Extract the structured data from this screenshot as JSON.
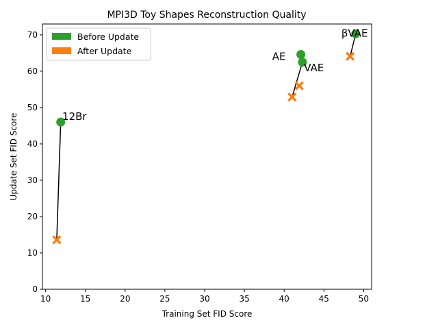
{
  "chart_data": {
    "type": "scatter",
    "title": "MPI3D Toy Shapes Reconstruction Quality",
    "xlabel": "Training Set FID Score",
    "ylabel": "Update Set FID Score",
    "xlim": [
      9.6,
      51.0
    ],
    "ylim": [
      0,
      73
    ],
    "xticks": [
      10,
      15,
      20,
      25,
      30,
      35,
      40,
      45,
      50
    ],
    "yticks": [
      0,
      10,
      20,
      30,
      40,
      50,
      60,
      70
    ],
    "grid": false,
    "legend_position": "top-left",
    "series": [
      {
        "name": "Before Update",
        "color": "#2ca02c",
        "marker": "circle",
        "points": [
          {
            "x": 11.9,
            "y": 46.0
          },
          {
            "x": 42.1,
            "y": 64.6
          },
          {
            "x": 42.3,
            "y": 62.5
          },
          {
            "x": 49.0,
            "y": 70.3
          }
        ]
      },
      {
        "name": "After Update",
        "color": "#ff7f0e",
        "marker": "x",
        "points": [
          {
            "x": 11.4,
            "y": 13.6
          },
          {
            "x": 41.0,
            "y": 52.9
          },
          {
            "x": 41.9,
            "y": 56.0
          },
          {
            "x": 48.3,
            "y": 64.1
          }
        ]
      }
    ],
    "connectors": [
      {
        "from": [
          11.9,
          46.0
        ],
        "to": [
          11.4,
          13.6
        ]
      },
      {
        "from": [
          42.3,
          62.5
        ],
        "to": [
          41.0,
          52.9
        ]
      },
      {
        "from": [
          49.0,
          70.3
        ],
        "to": [
          48.3,
          64.1
        ]
      }
    ],
    "annotations": [
      {
        "text": "12Br",
        "x": 12.1,
        "y": 46.6,
        "anchor": "start"
      },
      {
        "text": "AE",
        "x": 40.2,
        "y": 63.1,
        "anchor": "end"
      },
      {
        "text": "VAE",
        "x": 42.5,
        "y": 60.0,
        "anchor": "start"
      },
      {
        "text": "βVAE",
        "x": 47.2,
        "y": 69.5,
        "anchor": "start"
      }
    ]
  }
}
